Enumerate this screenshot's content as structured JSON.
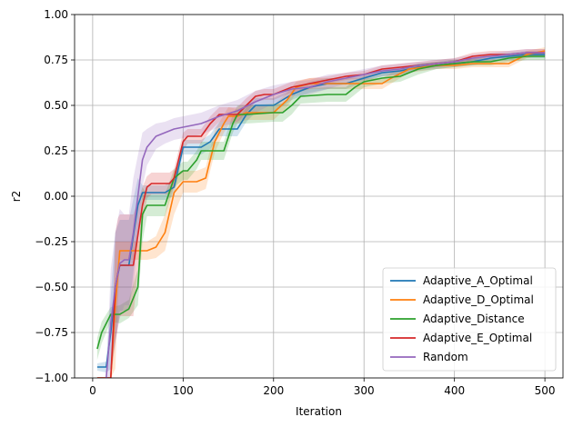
{
  "chart_data": {
    "type": "line",
    "title": "",
    "xlabel": "Iteration",
    "ylabel": "r2",
    "xlim": [
      -20,
      520
    ],
    "ylim": [
      -1.0,
      1.0
    ],
    "xticks": [
      0,
      100,
      200,
      300,
      400,
      500
    ],
    "xtick_labels": [
      "0",
      "100",
      "200",
      "300",
      "400",
      "500"
    ],
    "yticks": [
      -1.0,
      -0.75,
      -0.5,
      -0.25,
      0.0,
      0.25,
      0.5,
      0.75,
      1.0
    ],
    "ytick_labels": [
      "−1.00",
      "−0.75",
      "−0.50",
      "−0.25",
      "0.00",
      "0.25",
      "0.50",
      "0.75",
      "1.00"
    ],
    "grid": true,
    "legend_position": "lower-right",
    "series": [
      {
        "name": "Adaptive_A_Optimal",
        "color": "#1f77b4",
        "x": [
          5,
          15,
          20,
          25,
          30,
          40,
          50,
          55,
          60,
          80,
          90,
          100,
          120,
          130,
          140,
          160,
          170,
          180,
          200,
          220,
          240,
          260,
          280,
          300,
          320,
          340,
          360,
          380,
          400,
          420,
          440,
          460,
          480,
          500
        ],
        "y": [
          -0.94,
          -0.94,
          -0.75,
          -0.5,
          -0.38,
          -0.38,
          -0.05,
          0.02,
          0.02,
          0.02,
          0.05,
          0.27,
          0.27,
          0.3,
          0.37,
          0.37,
          0.45,
          0.5,
          0.5,
          0.56,
          0.6,
          0.62,
          0.62,
          0.65,
          0.68,
          0.69,
          0.71,
          0.72,
          0.73,
          0.74,
          0.76,
          0.77,
          0.78,
          0.78
        ],
        "std": [
          0.02,
          0.03,
          0.2,
          0.3,
          0.25,
          0.25,
          0.15,
          0.04,
          0.04,
          0.04,
          0.05,
          0.04,
          0.04,
          0.04,
          0.04,
          0.04,
          0.04,
          0.04,
          0.04,
          0.03,
          0.03,
          0.03,
          0.03,
          0.02,
          0.02,
          0.02,
          0.02,
          0.02,
          0.02,
          0.02,
          0.02,
          0.02,
          0.02,
          0.02
        ]
      },
      {
        "name": "Adaptive_D_Optimal",
        "color": "#ff7f0e",
        "x": [
          5,
          20,
          25,
          30,
          40,
          50,
          60,
          70,
          80,
          90,
          100,
          115,
          125,
          135,
          145,
          150,
          160,
          170,
          200,
          215,
          225,
          240,
          260,
          280,
          300,
          320,
          330,
          350,
          380,
          400,
          420,
          440,
          460,
          480,
          500
        ],
        "y": [
          -1.0,
          -1.0,
          -0.6,
          -0.3,
          -0.3,
          -0.3,
          -0.3,
          -0.28,
          -0.2,
          0.02,
          0.08,
          0.08,
          0.1,
          0.3,
          0.4,
          0.44,
          0.44,
          0.46,
          0.46,
          0.53,
          0.6,
          0.62,
          0.62,
          0.62,
          0.62,
          0.62,
          0.65,
          0.7,
          0.72,
          0.72,
          0.73,
          0.73,
          0.73,
          0.78,
          0.8
        ],
        "std": [
          0.0,
          0.0,
          0.35,
          0.05,
          0.05,
          0.05,
          0.05,
          0.06,
          0.1,
          0.12,
          0.06,
          0.06,
          0.06,
          0.06,
          0.05,
          0.05,
          0.04,
          0.04,
          0.04,
          0.04,
          0.03,
          0.03,
          0.03,
          0.03,
          0.03,
          0.03,
          0.03,
          0.02,
          0.02,
          0.02,
          0.02,
          0.02,
          0.02,
          0.02,
          0.02
        ]
      },
      {
        "name": "Adaptive_Distance",
        "color": "#2ca02c",
        "x": [
          5,
          10,
          20,
          30,
          40,
          50,
          55,
          60,
          80,
          90,
          100,
          105,
          115,
          120,
          145,
          155,
          160,
          170,
          200,
          210,
          220,
          230,
          260,
          280,
          290,
          300,
          320,
          340,
          360,
          380,
          400,
          420,
          440,
          460,
          480,
          500
        ],
        "y": [
          -0.84,
          -0.75,
          -0.65,
          -0.65,
          -0.62,
          -0.5,
          -0.1,
          -0.05,
          -0.05,
          0.1,
          0.14,
          0.14,
          0.2,
          0.25,
          0.25,
          0.4,
          0.45,
          0.45,
          0.46,
          0.46,
          0.5,
          0.55,
          0.56,
          0.56,
          0.6,
          0.63,
          0.65,
          0.66,
          0.7,
          0.72,
          0.73,
          0.74,
          0.74,
          0.76,
          0.77,
          0.77
        ],
        "std": [
          0.06,
          0.06,
          0.04,
          0.05,
          0.05,
          0.1,
          0.15,
          0.06,
          0.06,
          0.05,
          0.05,
          0.05,
          0.05,
          0.05,
          0.05,
          0.05,
          0.05,
          0.05,
          0.05,
          0.05,
          0.05,
          0.04,
          0.04,
          0.04,
          0.04,
          0.03,
          0.03,
          0.03,
          0.03,
          0.02,
          0.02,
          0.02,
          0.02,
          0.02,
          0.02,
          0.02
        ]
      },
      {
        "name": "Adaptive_E_Optimal",
        "color": "#d62728",
        "x": [
          5,
          20,
          25,
          28,
          30,
          45,
          55,
          60,
          65,
          80,
          85,
          90,
          100,
          105,
          120,
          130,
          140,
          160,
          170,
          180,
          190,
          200,
          220,
          240,
          260,
          280,
          300,
          320,
          340,
          360,
          380,
          400,
          420,
          440,
          460,
          480,
          500
        ],
        "y": [
          -1.0,
          -1.0,
          -0.5,
          -0.42,
          -0.38,
          -0.38,
          -0.05,
          0.05,
          0.07,
          0.07,
          0.07,
          0.1,
          0.3,
          0.33,
          0.33,
          0.4,
          0.45,
          0.45,
          0.5,
          0.55,
          0.56,
          0.56,
          0.6,
          0.62,
          0.64,
          0.66,
          0.67,
          0.7,
          0.71,
          0.72,
          0.73,
          0.74,
          0.77,
          0.78,
          0.78,
          0.79,
          0.79
        ],
        "std": [
          0.0,
          0.0,
          0.3,
          0.3,
          0.28,
          0.28,
          0.1,
          0.06,
          0.06,
          0.06,
          0.06,
          0.05,
          0.05,
          0.04,
          0.04,
          0.04,
          0.04,
          0.04,
          0.04,
          0.03,
          0.03,
          0.03,
          0.03,
          0.03,
          0.02,
          0.02,
          0.02,
          0.02,
          0.02,
          0.02,
          0.02,
          0.02,
          0.02,
          0.02,
          0.02,
          0.02,
          0.02
        ]
      },
      {
        "name": "Random",
        "color": "#9467bd",
        "x": [
          15,
          20,
          25,
          30,
          35,
          40,
          45,
          55,
          60,
          70,
          80,
          90,
          100,
          110,
          120,
          140,
          160,
          180,
          200,
          220,
          240,
          260,
          280,
          300,
          320,
          340,
          360,
          380,
          400,
          420,
          440,
          460,
          480,
          500
        ],
        "y": [
          -1.0,
          -0.7,
          -0.5,
          -0.37,
          -0.35,
          -0.35,
          -0.2,
          0.2,
          0.27,
          0.33,
          0.35,
          0.37,
          0.38,
          0.39,
          0.4,
          0.44,
          0.47,
          0.52,
          0.56,
          0.59,
          0.6,
          0.63,
          0.65,
          0.67,
          0.69,
          0.7,
          0.72,
          0.73,
          0.74,
          0.76,
          0.77,
          0.78,
          0.79,
          0.79
        ],
        "std": [
          0.0,
          0.3,
          0.3,
          0.3,
          0.25,
          0.25,
          0.3,
          0.15,
          0.1,
          0.07,
          0.06,
          0.06,
          0.06,
          0.06,
          0.06,
          0.06,
          0.06,
          0.06,
          0.05,
          0.04,
          0.04,
          0.04,
          0.03,
          0.03,
          0.03,
          0.03,
          0.02,
          0.02,
          0.02,
          0.02,
          0.02,
          0.02,
          0.02,
          0.02
        ]
      }
    ]
  }
}
